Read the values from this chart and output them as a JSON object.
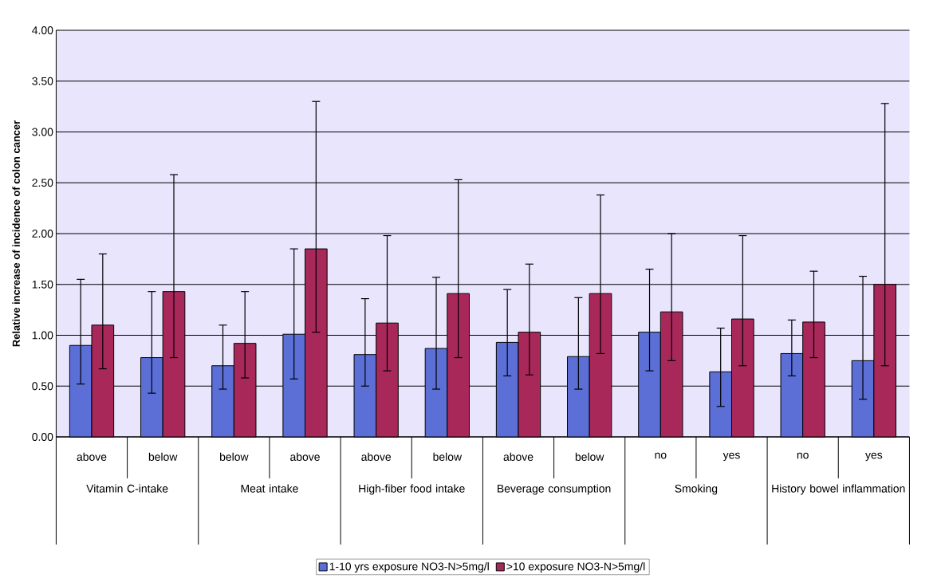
{
  "chart_data": {
    "type": "bar",
    "ylabel": "Relative increase of incidence of colon cancer",
    "categories": [
      "above",
      "below",
      "below",
      "above",
      "above",
      "below",
      "above",
      "below",
      "no",
      "yes",
      "no",
      "yes"
    ],
    "annotations": [
      "Vitamin C-intake",
      "Meat intake",
      "High-fiber food intake",
      "Beverage consumption",
      "Smoking",
      "History bowel inflammation"
    ],
    "series": [
      {
        "name": "1-10 yrs exposure NO3-N>5mg/l",
        "color": "#5b6fd6",
        "values": [
          0.9,
          0.78,
          0.7,
          1.01,
          0.81,
          0.87,
          0.93,
          0.79,
          1.03,
          0.64,
          0.82,
          0.75
        ],
        "errors": [
          [
            0.52,
            1.55
          ],
          [
            0.43,
            1.43
          ],
          [
            0.47,
            1.1
          ],
          [
            0.57,
            1.85
          ],
          [
            0.5,
            1.36
          ],
          [
            0.47,
            1.57
          ],
          [
            0.6,
            1.45
          ],
          [
            0.47,
            1.37
          ],
          [
            0.65,
            1.65
          ],
          [
            0.3,
            1.07
          ],
          [
            0.6,
            1.15
          ],
          [
            0.37,
            1.58
          ]
        ]
      },
      {
        "name": ">10 exposure NO3-N>5mg/l",
        "color": "#a8285a",
        "values": [
          1.1,
          1.43,
          0.92,
          1.85,
          1.12,
          1.41,
          1.03,
          1.41,
          1.23,
          1.16,
          1.13,
          1.5
        ],
        "errors": [
          [
            0.67,
            1.8
          ],
          [
            0.78,
            2.58
          ],
          [
            0.58,
            1.43
          ],
          [
            1.03,
            3.3
          ],
          [
            0.65,
            1.98
          ],
          [
            0.78,
            2.53
          ],
          [
            0.61,
            1.7
          ],
          [
            0.82,
            2.38
          ],
          [
            0.75,
            2.0
          ],
          [
            0.7,
            1.98
          ],
          [
            0.78,
            1.63
          ],
          [
            0.7,
            3.28
          ]
        ]
      }
    ],
    "ylim": [
      0,
      4
    ],
    "yticks": [
      {
        "value": 0,
        "label": "0.00"
      },
      {
        "value": 0.5,
        "label": "0.50"
      },
      {
        "value": 1,
        "label": "1.00"
      },
      {
        "value": 1.5,
        "label": "1.50"
      },
      {
        "value": 2,
        "label": "2.00"
      },
      {
        "value": 2.5,
        "label": "2.50"
      },
      {
        "value": 3,
        "label": "3.00"
      },
      {
        "value": 3.5,
        "label": "3.50"
      },
      {
        "value": 4,
        "label": "4.00"
      }
    ],
    "grid": "y",
    "legend": "bottom"
  }
}
